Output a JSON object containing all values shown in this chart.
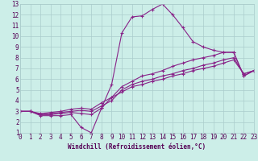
{
  "xlabel": "Windchill (Refroidissement éolien,°C)",
  "bg_color": "#cceee8",
  "grid_color": "#aacccc",
  "line_color": "#882288",
  "xlim": [
    0,
    23
  ],
  "ylim": [
    1,
    13
  ],
  "xticks": [
    0,
    1,
    2,
    3,
    4,
    5,
    6,
    7,
    8,
    9,
    10,
    11,
    12,
    13,
    14,
    15,
    16,
    17,
    18,
    19,
    20,
    21,
    22,
    23
  ],
  "yticks": [
    1,
    2,
    3,
    4,
    5,
    6,
    7,
    8,
    9,
    10,
    11,
    12,
    13
  ],
  "series": [
    [
      3.0,
      3.0,
      2.6,
      2.6,
      2.6,
      2.7,
      1.5,
      1.0,
      3.3,
      5.5,
      10.3,
      11.8,
      11.9,
      12.5,
      13.0,
      12.0,
      10.8,
      9.5,
      9.0,
      8.7,
      8.5,
      8.5,
      6.3,
      6.8
    ],
    [
      3.0,
      3.0,
      2.7,
      2.7,
      2.8,
      2.9,
      2.8,
      2.7,
      3.3,
      4.3,
      5.3,
      5.8,
      6.3,
      6.5,
      6.8,
      7.2,
      7.5,
      7.8,
      8.0,
      8.2,
      8.5,
      8.5,
      6.3,
      6.8
    ],
    [
      3.0,
      3.0,
      2.7,
      2.8,
      2.9,
      3.0,
      3.1,
      3.0,
      3.5,
      4.0,
      5.0,
      5.5,
      5.8,
      6.0,
      6.3,
      6.5,
      6.8,
      7.0,
      7.3,
      7.5,
      7.8,
      8.0,
      6.5,
      6.8
    ],
    [
      3.0,
      3.0,
      2.8,
      2.9,
      3.0,
      3.2,
      3.3,
      3.2,
      3.8,
      4.3,
      4.8,
      5.3,
      5.5,
      5.8,
      6.0,
      6.3,
      6.5,
      6.8,
      7.0,
      7.2,
      7.5,
      7.8,
      6.5,
      6.8
    ]
  ],
  "tick_fontsize": 5.5,
  "xlabel_fontsize": 5.5
}
